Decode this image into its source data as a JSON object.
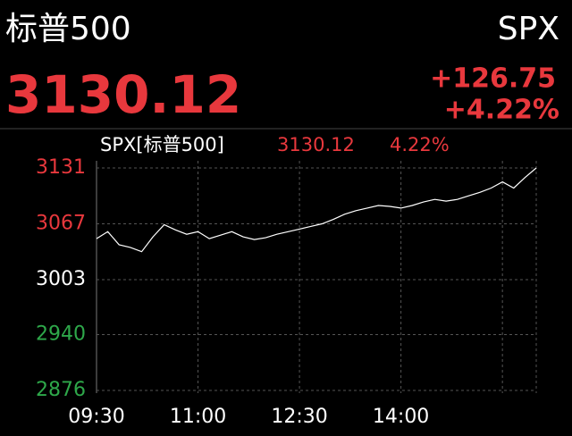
{
  "chart_data": {
    "type": "line",
    "title": "标普500",
    "symbol": "SPX",
    "price": "3130.12",
    "change": "+126.75",
    "change_pct": "+4.22%",
    "legend_price": "3130.12",
    "legend_pct": "4.22%",
    "x": [
      0,
      10,
      20,
      30,
      40,
      50,
      60,
      70,
      80,
      90,
      100,
      110,
      120,
      130,
      140,
      150,
      160,
      170,
      180,
      190,
      200,
      210,
      220,
      230,
      240,
      250,
      260,
      270,
      280,
      290,
      300,
      310,
      320,
      330,
      340,
      350,
      360,
      370,
      380,
      390
    ],
    "series": [
      {
        "name": "SPX[标普500]",
        "color": "#ffffff",
        "values": [
          3050,
          3058,
          3043,
          3040,
          3035,
          3052,
          3066,
          3060,
          3055,
          3058,
          3050,
          3054,
          3058,
          3052,
          3049,
          3051,
          3055,
          3058,
          3061,
          3064,
          3067,
          3072,
          3078,
          3082,
          3085,
          3088,
          3087,
          3085,
          3088,
          3092,
          3095,
          3093,
          3095,
          3099,
          3103,
          3108,
          3115,
          3108,
          3120,
          3131
        ]
      }
    ],
    "xlim": [
      0,
      390
    ],
    "xticks": [
      {
        "value": 0,
        "label": "09:30"
      },
      {
        "value": 90,
        "label": "11:00"
      },
      {
        "value": 180,
        "label": "12:30"
      },
      {
        "value": 270,
        "label": "14:00"
      },
      {
        "value": 360,
        "label": null
      }
    ],
    "ylim": [
      2876,
      3131
    ],
    "yticks": [
      3131,
      3067,
      3003,
      2940,
      2876
    ],
    "ytick_colors": [
      "#e8383d",
      "#e8383d",
      "#ffffff",
      "#2ea84a",
      "#2ea84a"
    ],
    "up_color": "#e8383d",
    "grid": true
  }
}
